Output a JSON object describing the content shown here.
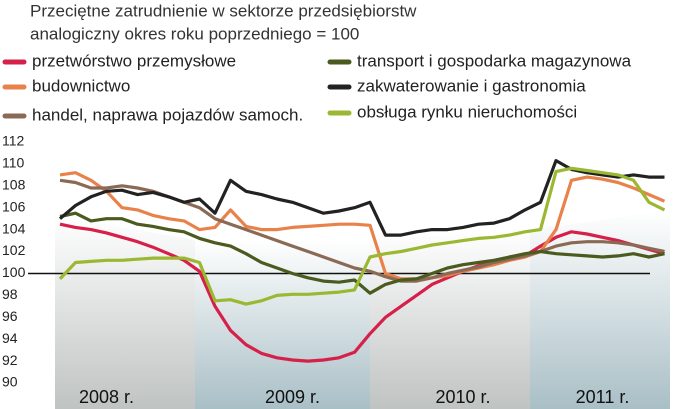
{
  "chart_data": {
    "type": "line",
    "title": "Przeciętne zatrudnienie w sektorze przedsiębiorstw",
    "subtitle": "analogiczny okres roku poprzedniego = 100",
    "categories": [
      null,
      null,
      null,
      "2008 r.",
      null,
      null,
      null,
      null,
      null,
      null,
      null,
      null,
      null,
      null,
      null,
      "2009 r.",
      null,
      null,
      null,
      null,
      null,
      null,
      null,
      null,
      null,
      null,
      "2010 r.",
      null,
      null,
      null,
      null,
      null,
      null,
      null,
      null,
      "2011 r.",
      null,
      null,
      null,
      null
    ],
    "ylim": [
      90,
      112
    ],
    "yticks": [
      90,
      92,
      94,
      96,
      98,
      100,
      102,
      104,
      106,
      108,
      110,
      112
    ],
    "baseline": 100,
    "series": [
      {
        "name": "przetwórstwo przemysłowe",
        "color": "#d6204a",
        "values": [
          104.5,
          104.2,
          104,
          103.7,
          103.3,
          102.9,
          102.4,
          101.8,
          101.2,
          100.2,
          97,
          94.8,
          93.5,
          92.7,
          92.3,
          92.1,
          92,
          92.1,
          92.3,
          92.8,
          94.5,
          96,
          97,
          98,
          99,
          99.6,
          100.2,
          100.7,
          101,
          101.3,
          101.6,
          102.5,
          103.3,
          103.8,
          103.6,
          103.3,
          103,
          102.6,
          102.2,
          101.8
        ]
      },
      {
        "name": "budownictwo",
        "color": "#e8824a",
        "values": [
          109,
          109.2,
          108.5,
          107.5,
          106,
          105.8,
          105.3,
          105,
          104.8,
          104,
          104.2,
          105.8,
          104.3,
          104,
          104,
          104.2,
          104.3,
          104.4,
          104.5,
          104.5,
          104.4,
          100,
          99.5,
          99.5,
          99.6,
          99.8,
          100.2,
          100.5,
          100.8,
          101.2,
          101.5,
          102,
          104,
          108.5,
          108.8,
          108.6,
          108.3,
          107.8,
          107.2,
          106.6
        ]
      },
      {
        "name": "handel, naprawa pojazdów samoch.",
        "color": "#8b6a55",
        "values": [
          108.5,
          108.3,
          107.8,
          107.8,
          108,
          107.8,
          107.5,
          107,
          106.5,
          106,
          105,
          104.5,
          104,
          103.5,
          103,
          102.5,
          102,
          101.5,
          101,
          100.5,
          100.2,
          99.7,
          99.3,
          99.3,
          99.6,
          100,
          100.3,
          100.6,
          101,
          101.3,
          101.6,
          102,
          102.5,
          102.8,
          102.9,
          102.9,
          102.8,
          102.6,
          102.3,
          102
        ]
      },
      {
        "name": "transport i gospodarka magazynowa",
        "color": "#4b5a1e",
        "values": [
          105.2,
          105.5,
          104.8,
          105,
          105,
          104.5,
          104.3,
          104,
          103.8,
          103.2,
          102.8,
          102.5,
          101.8,
          101,
          100.5,
          100,
          99.6,
          99.3,
          99.2,
          99.4,
          98.2,
          99,
          99.4,
          99.5,
          100,
          100.5,
          100.8,
          101,
          101.2,
          101.5,
          101.8,
          102,
          101.8,
          101.7,
          101.6,
          101.5,
          101.6,
          101.8,
          101.5,
          101.8
        ]
      },
      {
        "name": "zakwaterowanie i gastronomia",
        "color": "#222222",
        "values": [
          105,
          106.2,
          107,
          107.5,
          107.6,
          107.2,
          107.4,
          107,
          106.5,
          106.8,
          105.5,
          108.5,
          107.5,
          107.2,
          106.8,
          106.5,
          106,
          105.5,
          105.7,
          106,
          106.5,
          103.5,
          103.5,
          103.8,
          104,
          104,
          104.2,
          104.5,
          104.6,
          105,
          105.8,
          106.5,
          110.3,
          109.5,
          109.2,
          109,
          108.8,
          109,
          108.8,
          108.8
        ]
      },
      {
        "name": "obsługa rynku nieruchomości",
        "color": "#9ab832",
        "values": [
          99.5,
          101,
          101.1,
          101.2,
          101.2,
          101.3,
          101.4,
          101.4,
          101.4,
          101,
          97.5,
          97.6,
          97.2,
          97.5,
          98,
          98.1,
          98.1,
          98.2,
          98.3,
          98.5,
          101.5,
          101.8,
          102,
          102.3,
          102.6,
          102.8,
          103,
          103.2,
          103.3,
          103.5,
          103.8,
          104,
          109.3,
          109.6,
          109.4,
          109.2,
          109,
          108.5,
          106.5,
          105.8
        ]
      }
    ]
  }
}
